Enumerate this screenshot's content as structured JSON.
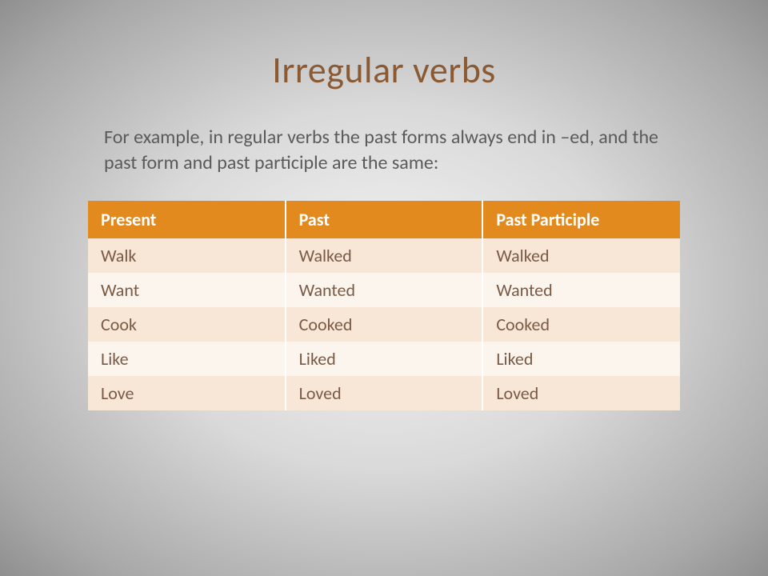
{
  "slide": {
    "title": "Irregular verbs",
    "body": "For example, in regular verbs the past forms always end in –ed, and the past form and past participle are the same:"
  },
  "table": {
    "type": "table",
    "columns": [
      "Present",
      "Past",
      "Past Participle"
    ],
    "rows": [
      [
        "Walk",
        "Walked",
        "Walked"
      ],
      [
        "Want",
        "Wanted",
        "Wanted"
      ],
      [
        "Cook",
        "Cooked",
        "Cooked"
      ],
      [
        "Like",
        "Liked",
        "Liked"
      ],
      [
        "Love",
        "Loved",
        "Loved"
      ]
    ],
    "header_bg": "#e38a1e",
    "header_text_color": "#ffffff",
    "row_odd_bg": "#f8e7d7",
    "row_even_bg": "#fcf5ee",
    "cell_text_color": "#7a5a44",
    "title_color": "#8b5a33",
    "body_text_color": "#5a5a5a",
    "title_fontsize": 46,
    "body_fontsize": 24,
    "table_fontsize": 22
  }
}
